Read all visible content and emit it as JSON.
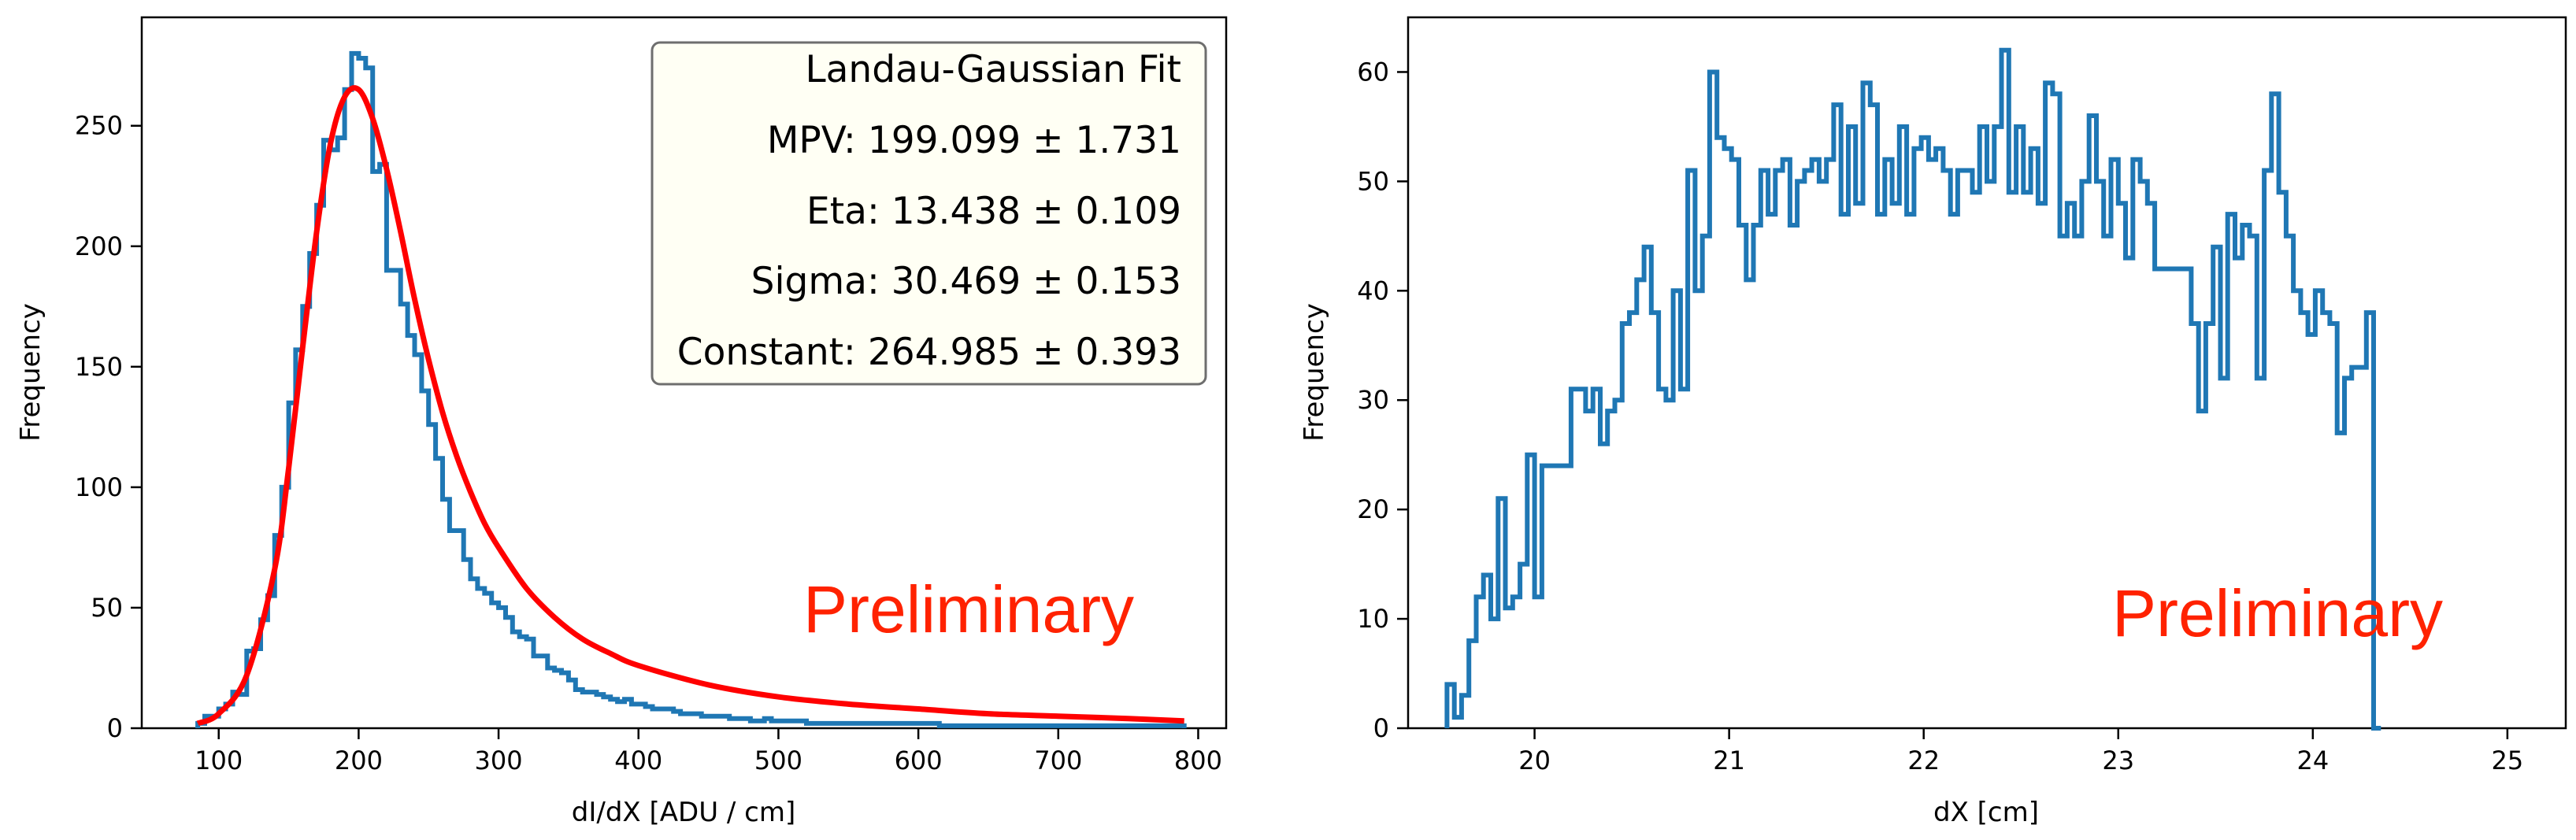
{
  "chart_data": [
    {
      "type": "histogram",
      "xlabel": "dI/dX [ADU / cm]",
      "ylabel": "Frequency",
      "xlim": [
        45,
        820
      ],
      "ylim": [
        0,
        295
      ],
      "xticks": [
        100,
        200,
        300,
        400,
        500,
        600,
        700,
        800
      ],
      "yticks": [
        0,
        50,
        100,
        150,
        200,
        250
      ],
      "grid": false,
      "histogram": {
        "color": "#1f77b4",
        "bin_edges": [
          85,
          90,
          95,
          100,
          105,
          110,
          115,
          120,
          125,
          130,
          135,
          140,
          145,
          150,
          155,
          160,
          165,
          170,
          175,
          180,
          185,
          190,
          195,
          200,
          205,
          210,
          215,
          220,
          225,
          230,
          235,
          240,
          245,
          250,
          255,
          260,
          265,
          270,
          275,
          280,
          285,
          290,
          295,
          300,
          305,
          310,
          315,
          320,
          325,
          330,
          335,
          340,
          345,
          350,
          355,
          360,
          365,
          370,
          375,
          380,
          385,
          390,
          395,
          400,
          405,
          410,
          415,
          420,
          425,
          430,
          435,
          440,
          445,
          450,
          455,
          460,
          465,
          470,
          475,
          480,
          485,
          490,
          495,
          500,
          505,
          510,
          515,
          520,
          525,
          530,
          535,
          540,
          545,
          550,
          555,
          560,
          565,
          570,
          575,
          580,
          585,
          590,
          595,
          600,
          605,
          610,
          615,
          620,
          625,
          630,
          635,
          640,
          645,
          650,
          655,
          660,
          665,
          670,
          675,
          680,
          685,
          690,
          695,
          700,
          705,
          710,
          715,
          720,
          725,
          730,
          735,
          740,
          745,
          750,
          755,
          760,
          765,
          770,
          775,
          780,
          785,
          790
        ],
        "counts": [
          2,
          5,
          5,
          8,
          10,
          15,
          14,
          32,
          33,
          45,
          55,
          80,
          100,
          135,
          157,
          175,
          197,
          217,
          244,
          240,
          245,
          265,
          280,
          278,
          274,
          231,
          234,
          190,
          190,
          176,
          163,
          155,
          140,
          126,
          112,
          95,
          82,
          82,
          70,
          62,
          58,
          56,
          52,
          50,
          46,
          40,
          38,
          37,
          30,
          30,
          25,
          24,
          23,
          20,
          16,
          15,
          15,
          14,
          13,
          12,
          11,
          12,
          10,
          10,
          9,
          8,
          8,
          8,
          7,
          6,
          6,
          6,
          5,
          5,
          5,
          5,
          4,
          4,
          4,
          3,
          3,
          4,
          3,
          3,
          3,
          3,
          3,
          2,
          2,
          2,
          2,
          2,
          2,
          2,
          2,
          2,
          2,
          2,
          2,
          2,
          2,
          2,
          2,
          2,
          2,
          2,
          1,
          1,
          1,
          1,
          1,
          1,
          1,
          1,
          1,
          1,
          1,
          1,
          1,
          1,
          1,
          1,
          1,
          1,
          1,
          1,
          1,
          1,
          1,
          1,
          1,
          1,
          1,
          1,
          1,
          1,
          1,
          1,
          1,
          1,
          1
        ]
      },
      "fit": {
        "color": "#ff0000",
        "x": [
          85,
          100,
          120,
          140,
          150,
          160,
          170,
          180,
          190,
          200,
          210,
          220,
          230,
          240,
          250,
          260,
          270,
          280,
          290,
          300,
          320,
          340,
          360,
          380,
          400,
          450,
          500,
          550,
          600,
          650,
          700,
          750,
          790
        ],
        "y": [
          2,
          6,
          22,
          66,
          108,
          158,
          206,
          243,
          262,
          265,
          253,
          232,
          206,
          178,
          153,
          131,
          113,
          98,
          85,
          75,
          58,
          46,
          37,
          31,
          26,
          18,
          13,
          10,
          8,
          6,
          5,
          4,
          3
        ]
      },
      "legend": {
        "placement": "top-right",
        "lines": [
          "Landau-Gaussian Fit",
          "MPV: 199.099 ± 1.731",
          "Eta: 13.438 ± 0.109",
          "Sigma: 30.469 ± 0.153",
          "Constant: 264.985 ± 0.393"
        ]
      },
      "annotation": "Preliminary"
    },
    {
      "type": "histogram",
      "xlabel": "dX [cm]",
      "ylabel": "Frequency",
      "xlim": [
        19.35,
        25.3
      ],
      "ylim": [
        0,
        65
      ],
      "xticks": [
        20,
        21,
        22,
        23,
        24,
        25
      ],
      "yticks": [
        0,
        10,
        20,
        30,
        40,
        50,
        60
      ],
      "grid": false,
      "histogram": {
        "color": "#1f77b4",
        "bin_start": 19.55,
        "bin_width": 0.0375,
        "counts": [
          4,
          1,
          3,
          8,
          12,
          14,
          10,
          21,
          11,
          12,
          15,
          25,
          12,
          24,
          24,
          24,
          24,
          31,
          31,
          29,
          31,
          26,
          29,
          30,
          37,
          38,
          41,
          44,
          38,
          31,
          30,
          40,
          31,
          51,
          40,
          45,
          60,
          54,
          53,
          52,
          46,
          41,
          46,
          51,
          47,
          51,
          52,
          46,
          50,
          51,
          52,
          50,
          52,
          57,
          47,
          55,
          48,
          59,
          57,
          47,
          52,
          48,
          55,
          47,
          53,
          54,
          52,
          53,
          51,
          47,
          51,
          51,
          49,
          55,
          50,
          55,
          62,
          49,
          55,
          49,
          53,
          48,
          59,
          58,
          45,
          48,
          45,
          50,
          56,
          50,
          45,
          52,
          48,
          43,
          52,
          50,
          48,
          42,
          42,
          42,
          42,
          42,
          37,
          29,
          37,
          44,
          32,
          47,
          43,
          46,
          45,
          32,
          51,
          58,
          49,
          45,
          40,
          38,
          36,
          40,
          38,
          37,
          27,
          32,
          33,
          33,
          38,
          0
        ]
      },
      "annotation": "Preliminary"
    }
  ]
}
